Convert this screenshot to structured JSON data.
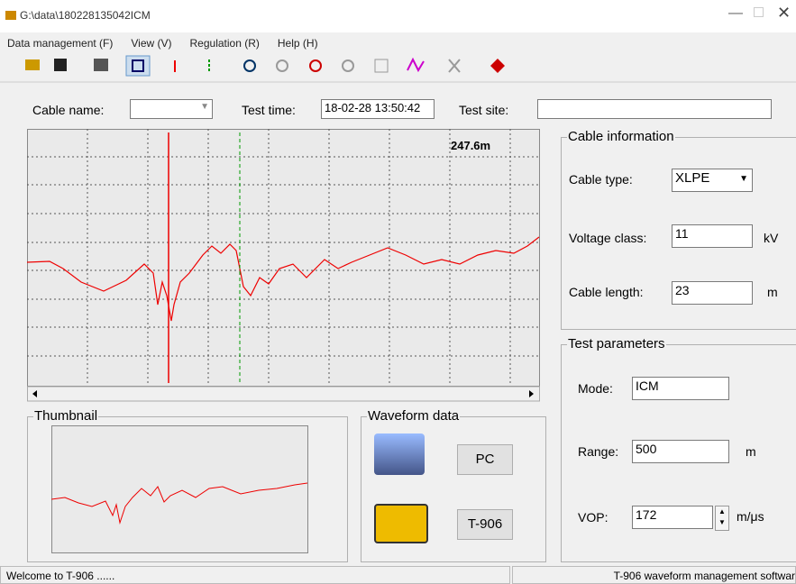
{
  "window": {
    "title": "G:\\data\\180228135042ICM"
  },
  "menu": [
    "Data management (F)",
    "View (V)",
    "Regulation (R)",
    "Help (H)"
  ],
  "form": {
    "cable_name_label": "Cable name:",
    "test_time_label": "Test time:",
    "test_time": "18-02-28  13:50:42",
    "test_site_label": "Test site:"
  },
  "plot": {
    "cursor_distance": "247.6m"
  },
  "cable_information": {
    "title": "Cable information",
    "cable_type_label": "Cable type:",
    "cable_type": "XLPE",
    "voltage_class_label": "Voltage class:",
    "voltage_class": "11",
    "voltage_unit": "kV",
    "cable_length_label": "Cable length:",
    "cable_length": "23",
    "cable_length_unit": "m"
  },
  "test_parameters": {
    "title": "Test parameters",
    "mode_label": "Mode:",
    "mode": "ICM",
    "range_label": "Range:",
    "range": "500",
    "range_unit": "m",
    "vop_label": "VOP:",
    "vop": "172",
    "vop_unit": "m/μs"
  },
  "thumbnail": {
    "title": "Thumbnail"
  },
  "waveform_data": {
    "title": "Waveform data",
    "pc_button": "PC",
    "device_button": "T-906"
  },
  "status": {
    "left": "Welcome to T-906 ......",
    "right": "T-906 waveform management softwar"
  }
}
